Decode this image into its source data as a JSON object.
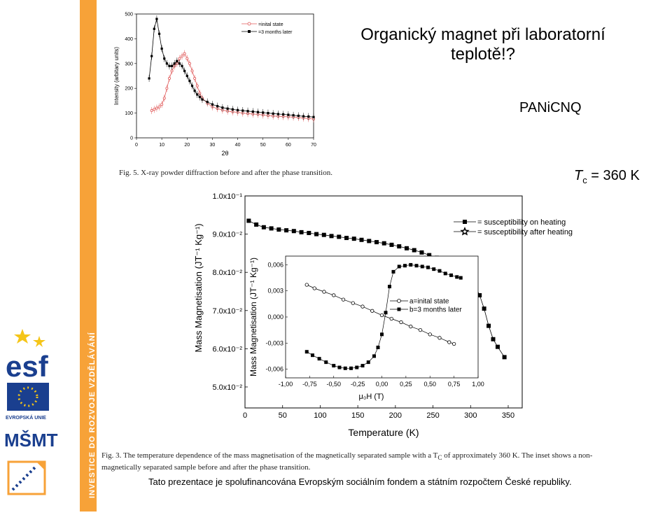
{
  "slide": {
    "title_line1": "Organický magnet při laboratorní",
    "title_line2": "teplotě!?",
    "material": "PANiCNQ",
    "tc_symbol": "T",
    "tc_sub": "c",
    "tc_value": " = 360 K",
    "side_banner": "INVESTICE DO ROZVOJE VZDĚLÁVÁNÍ",
    "footer": "Tato prezentace je spolufinancována Evropským sociálním fondem a státním rozpočtem České republiky.",
    "logos": {
      "esf": "esf",
      "eu": "EVROPSKÁ UNIE",
      "msmt": "MŠMT"
    }
  },
  "fig5": {
    "caption": "Fig. 5. X-ray powder diffraction before and after the phase transition."
  },
  "fig3": {
    "caption_line1": "Fig. 3. The temperature dependence of the mass magnetisation of the magnetically separated sample with a T",
    "caption_sub": "C",
    "caption_line1b": " of approximately 360 K. The inset shows a non-",
    "caption_line2": "magnetically separated sample before and after the phase transition."
  },
  "chart_data": [
    {
      "type": "line",
      "xlabel": "2θ",
      "ylabel": "Intensity (arbitary units)",
      "xlim": [
        0,
        70
      ],
      "ylim": [
        0,
        500
      ],
      "xticks": [
        "0",
        "10",
        "20",
        "30",
        "40",
        "50",
        "60",
        "70"
      ],
      "yticks": [
        "0",
        "100",
        "200",
        "300",
        "400",
        "500"
      ],
      "legend_position": "top-right",
      "series": [
        {
          "name": "=inital state",
          "color": "#e05a5a",
          "marker": "open-circle",
          "x": [
            6,
            7,
            8,
            9,
            10,
            11,
            12,
            13,
            14,
            15,
            16,
            17,
            18,
            19,
            20,
            21,
            22,
            23,
            24,
            25,
            26,
            28,
            30,
            32,
            34,
            36,
            38,
            40,
            42,
            44,
            46,
            48,
            50,
            52,
            54,
            56,
            58,
            60,
            62,
            64,
            66,
            68,
            70
          ],
          "values": [
            110,
            115,
            120,
            125,
            135,
            160,
            200,
            240,
            270,
            290,
            300,
            320,
            330,
            340,
            320,
            300,
            270,
            240,
            210,
            180,
            160,
            140,
            125,
            118,
            112,
            108,
            105,
            103,
            100,
            98,
            96,
            95,
            92,
            90,
            88,
            87,
            86,
            85,
            84,
            82,
            80,
            78,
            76
          ]
        },
        {
          "name": "=3 months later",
          "color": "#000000",
          "marker": "filled-square",
          "x": [
            5,
            6,
            7,
            8,
            9,
            10,
            11,
            12,
            13,
            14,
            15,
            16,
            17,
            18,
            19,
            20,
            21,
            22,
            23,
            24,
            25,
            26,
            28,
            30,
            32,
            34,
            36,
            38,
            40,
            42,
            44,
            46,
            48,
            50,
            52,
            54,
            56,
            58,
            60,
            62,
            64,
            66,
            68,
            70
          ],
          "values": [
            240,
            330,
            440,
            480,
            420,
            360,
            320,
            300,
            290,
            290,
            300,
            310,
            300,
            290,
            270,
            250,
            230,
            210,
            190,
            175,
            165,
            155,
            145,
            135,
            128,
            122,
            118,
            115,
            112,
            110,
            108,
            106,
            104,
            102,
            100,
            98,
            96,
            95,
            93,
            91,
            89,
            87,
            86,
            84
          ]
        }
      ]
    },
    {
      "type": "scatter",
      "xlabel": "Temperature (K)",
      "ylabel": "Mass Magnetisation (JT⁻¹ Kg⁻¹)",
      "xlim": [
        0,
        350
      ],
      "ylim": [
        0.05,
        0.1
      ],
      "xticks": [
        "0",
        "50",
        "100",
        "150",
        "200",
        "250",
        "300",
        "350"
      ],
      "yticks": [
        "5.0x10⁻²",
        "6.0x10⁻²",
        "7.0x10⁻²",
        "8.0x10⁻²",
        "9.0x10⁻²",
        "1.0x10⁻¹"
      ],
      "legend_position": "top-right",
      "series": [
        {
          "name": "= susceptibility on heating",
          "marker": "filled-square",
          "x": [
            5,
            15,
            25,
            35,
            45,
            55,
            65,
            75,
            85,
            95,
            105,
            115,
            125,
            135,
            145,
            155,
            165,
            175,
            185,
            195,
            205,
            215,
            225,
            235,
            245,
            255,
            265,
            275,
            282,
            288,
            295,
            300,
            306,
            312,
            318,
            324,
            330,
            336,
            345
          ],
          "values": [
            0.0935,
            0.0925,
            0.0918,
            0.0915,
            0.0912,
            0.091,
            0.0908,
            0.0905,
            0.0903,
            0.09,
            0.0898,
            0.0895,
            0.0893,
            0.089,
            0.0888,
            0.0885,
            0.0882,
            0.0879,
            0.0876,
            0.0872,
            0.0868,
            0.0863,
            0.0858,
            0.0852,
            0.0845,
            0.0838,
            0.083,
            0.082,
            0.081,
            0.08,
            0.079,
            0.078,
            0.0765,
            0.074,
            0.0705,
            0.066,
            0.0625,
            0.0605,
            0.0578
          ]
        },
        {
          "name": "= susceptibility after heating",
          "marker": "open-star",
          "x": [
            288
          ],
          "values": [
            0.0802
          ]
        }
      ]
    },
    {
      "type": "line",
      "xlabel": "μ₀H (T)",
      "ylabel": "Mass Magnetisation (JT⁻¹ Kg⁻¹)",
      "xlim": [
        -1.0,
        1.0
      ],
      "ylim": [
        -0.007,
        0.007
      ],
      "xticks": [
        "-1,00",
        "-0,75",
        "-0,50",
        "-0,25",
        "0,00",
        "0,25",
        "0,50",
        "0,75",
        "1,00"
      ],
      "yticks": [
        "0,006",
        "0,003",
        "0,000",
        "-0,003",
        "-0,006"
      ],
      "legend_position": "center-right",
      "series": [
        {
          "name": "a=inital state",
          "marker": "open-circle",
          "x": [
            -0.78,
            -0.7,
            -0.6,
            -0.5,
            -0.4,
            -0.3,
            -0.2,
            -0.1,
            0.0,
            0.1,
            0.2,
            0.3,
            0.4,
            0.5,
            0.6,
            0.7,
            0.75
          ],
          "values": [
            0.0037,
            0.0033,
            0.0029,
            0.0025,
            0.002,
            0.0016,
            0.0012,
            0.0007,
            0.0002,
            -0.0002,
            -0.0006,
            -0.0011,
            -0.0015,
            -0.002,
            -0.0024,
            -0.0029,
            -0.0031
          ]
        },
        {
          "name": "b=3 months later",
          "marker": "filled-square",
          "x": [
            -0.78,
            -0.72,
            -0.65,
            -0.58,
            -0.5,
            -0.44,
            -0.38,
            -0.32,
            -0.26,
            -0.2,
            -0.14,
            -0.08,
            -0.04,
            0.0,
            0.04,
            0.08,
            0.12,
            0.18,
            0.24,
            0.3,
            0.36,
            0.42,
            0.48,
            0.54,
            0.6,
            0.66,
            0.72,
            0.78,
            0.82
          ],
          "values": [
            -0.004,
            -0.0044,
            -0.0048,
            -0.0052,
            -0.0056,
            -0.0058,
            -0.0059,
            -0.0059,
            -0.0058,
            -0.0056,
            -0.0052,
            -0.0045,
            -0.0035,
            -0.002,
            0.0005,
            0.0035,
            0.0052,
            0.0058,
            0.0059,
            0.006,
            0.0059,
            0.0058,
            0.0057,
            0.0055,
            0.0053,
            0.005,
            0.0048,
            0.0046,
            0.0045
          ]
        }
      ]
    }
  ]
}
